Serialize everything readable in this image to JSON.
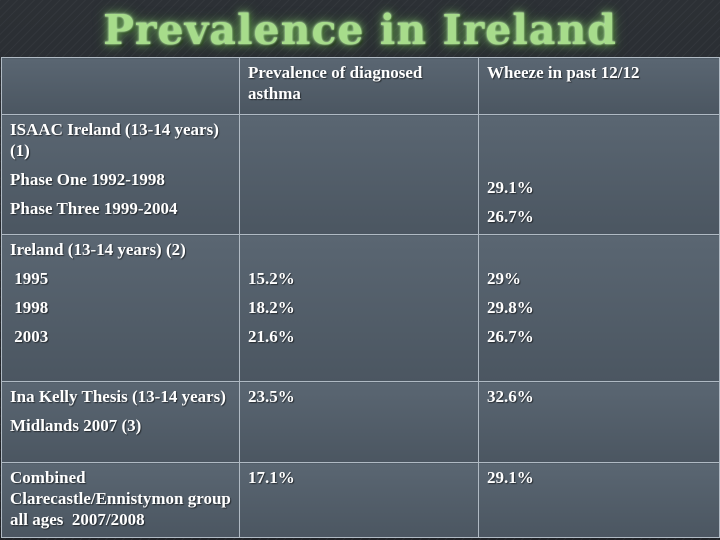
{
  "slide": {
    "title": "Prevalence in Ireland"
  },
  "table": {
    "headers": [
      "",
      "Prevalence of diagnosed asthma",
      "Wheeze in past 12/12"
    ],
    "rows": [
      {
        "label_lines": [
          "ISAAC Ireland (13-14 years) (1)",
          "Phase One 1992-1998",
          "Phase Three 1999-2004"
        ],
        "asthma": [],
        "wheeze": [
          "29.1%",
          "26.7%"
        ]
      },
      {
        "label_lines": [
          "Ireland  (13-14 years) (2)",
          " 1995",
          " 1998",
          " 2003"
        ],
        "asthma": [
          "15.2%",
          "18.2%",
          "21.6%"
        ],
        "wheeze": [
          "29%",
          "29.8%",
          "26.7%"
        ]
      },
      {
        "label_lines": [
          "Ina Kelly Thesis (13-14 years)",
          "Midlands 2007 (3)"
        ],
        "asthma": [
          "23.5%"
        ],
        "wheeze": [
          "32.6%"
        ]
      },
      {
        "label_lines": [
          "Combined Clarecastle/Ennistymon group all ages  2007/2008"
        ],
        "asthma": [
          "17.1%"
        ],
        "wheeze": [
          "29.1%"
        ]
      }
    ]
  }
}
